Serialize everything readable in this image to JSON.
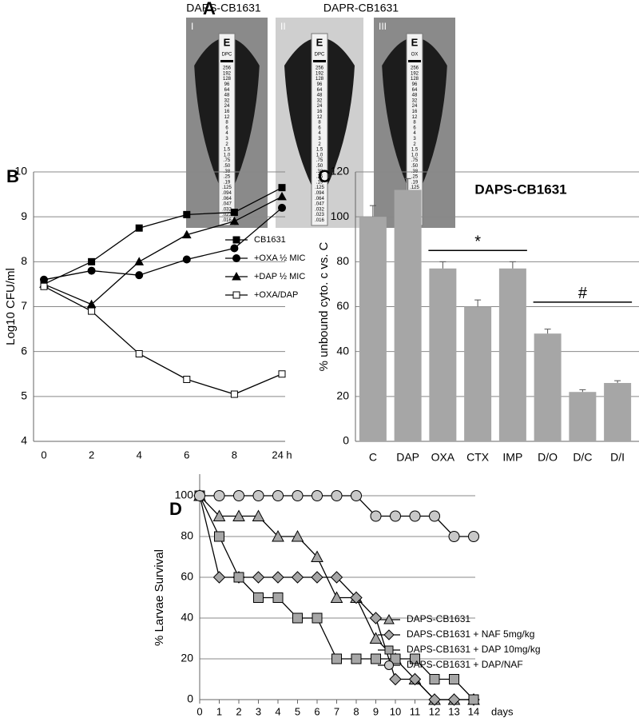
{
  "figure_a": {
    "letter": "A",
    "groups": [
      "DAPS-CB1631",
      "DAPR-CB1631"
    ],
    "panels": [
      {
        "numeral": "I",
        "strip": "DPC"
      },
      {
        "numeral": "II",
        "strip": "DPC"
      },
      {
        "numeral": "III",
        "strip": "OX"
      }
    ],
    "logo": "E",
    "scale": [
      "256",
      "192",
      "128",
      "96",
      "64",
      "48",
      "32",
      "24",
      "16",
      "12",
      "8",
      "6",
      "4",
      "3",
      "2",
      "1.5",
      "1.0",
      ".75",
      ".50",
      ".38",
      ".25",
      ".19",
      ".125",
      ".094",
      ".064",
      ".047",
      ".032",
      ".023",
      ".016"
    ]
  },
  "chart_data": [
    {
      "letter": "B",
      "type": "line",
      "ylabel": "Log10 CFU/ml",
      "categories": [
        "0",
        "2",
        "4",
        "6",
        "8",
        "24 h"
      ],
      "ylim": [
        4,
        10
      ],
      "yticks": [
        4,
        5,
        6,
        7,
        8,
        9,
        10
      ],
      "grid": true,
      "legend": "right",
      "series": [
        {
          "name": "CB1631",
          "color": "#000000",
          "marker": "square",
          "fill": "#000000",
          "values": [
            7.5,
            8.0,
            8.75,
            9.05,
            9.1,
            9.65
          ]
        },
        {
          "name": "+OXA ½ MIC",
          "color": "#000000",
          "marker": "circle",
          "fill": "#000000",
          "values": [
            7.6,
            7.8,
            7.7,
            8.05,
            8.3,
            9.2
          ]
        },
        {
          "name": "+DAP ½ MIC",
          "color": "#000000",
          "marker": "triangle",
          "fill": "#000000",
          "values": [
            7.5,
            7.05,
            8.0,
            8.6,
            8.9,
            9.45
          ]
        },
        {
          "name": "+OXA/DAP",
          "color": "#000000",
          "marker": "square",
          "fill": "#ffffff",
          "values": [
            7.45,
            6.9,
            5.95,
            5.38,
            5.05,
            5.5
          ]
        }
      ]
    },
    {
      "letter": "C",
      "type": "bar",
      "title": "DAPS-CB1631",
      "ylabel": "% unbound cyto. c vs. C",
      "categories": [
        "C",
        "DAP",
        "OXA",
        "CTX",
        "IMP",
        "D/O",
        "D/C",
        "D/I"
      ],
      "values": [
        100,
        112,
        77,
        60,
        77,
        48,
        22,
        26
      ],
      "errors": [
        5,
        5,
        3,
        3,
        3,
        2,
        1,
        1
      ],
      "color": "#a6a6a6",
      "ylim": [
        0,
        120
      ],
      "yticks": [
        0,
        20,
        40,
        60,
        80,
        100,
        120
      ],
      "grid": true,
      "annotations": [
        "*",
        "#"
      ]
    },
    {
      "letter": "D",
      "type": "line",
      "ylabel": "% Larvae Survival",
      "xlabel": "days",
      "x": [
        0,
        1,
        2,
        3,
        4,
        5,
        6,
        7,
        8,
        9,
        10,
        11,
        12,
        13,
        14
      ],
      "xlim": [
        0,
        14
      ],
      "xticks": [
        0,
        1,
        2,
        3,
        4,
        5,
        6,
        7,
        8,
        9,
        10,
        11,
        12,
        13,
        14
      ],
      "ylim": [
        0,
        100
      ],
      "yticks": [
        0,
        20,
        40,
        60,
        80,
        100
      ],
      "grid": true,
      "legend": "right",
      "series": [
        {
          "name": "DAPS-CB1631",
          "color": "#000000",
          "marker": "triangle",
          "fill": "#a6a6a6",
          "values": [
            100,
            90,
            90,
            90,
            80,
            80,
            70,
            50,
            50,
            30,
            20,
            10,
            0,
            0,
            0
          ]
        },
        {
          "name": "DAPS-CB1631 + NAF 5mg/kg",
          "color": "#000000",
          "marker": "diamond",
          "fill": "#a6a6a6",
          "values": [
            100,
            60,
            60,
            60,
            60,
            60,
            60,
            60,
            50,
            40,
            10,
            10,
            0,
            0,
            0
          ]
        },
        {
          "name": "DAPS-CB1631 + DAP 10mg/kg",
          "color": "#000000",
          "marker": "square",
          "fill": "#a6a6a6",
          "values": [
            100,
            80,
            60,
            50,
            50,
            40,
            40,
            20,
            20,
            20,
            20,
            20,
            10,
            10,
            0
          ]
        },
        {
          "name": "DAPS-CB1631 + DAP/NAF",
          "color": "#000000",
          "marker": "circle",
          "fill": "#c8c8c8",
          "values": [
            100,
            100,
            100,
            100,
            100,
            100,
            100,
            100,
            100,
            90,
            90,
            90,
            90,
            80,
            80
          ]
        }
      ]
    }
  ]
}
